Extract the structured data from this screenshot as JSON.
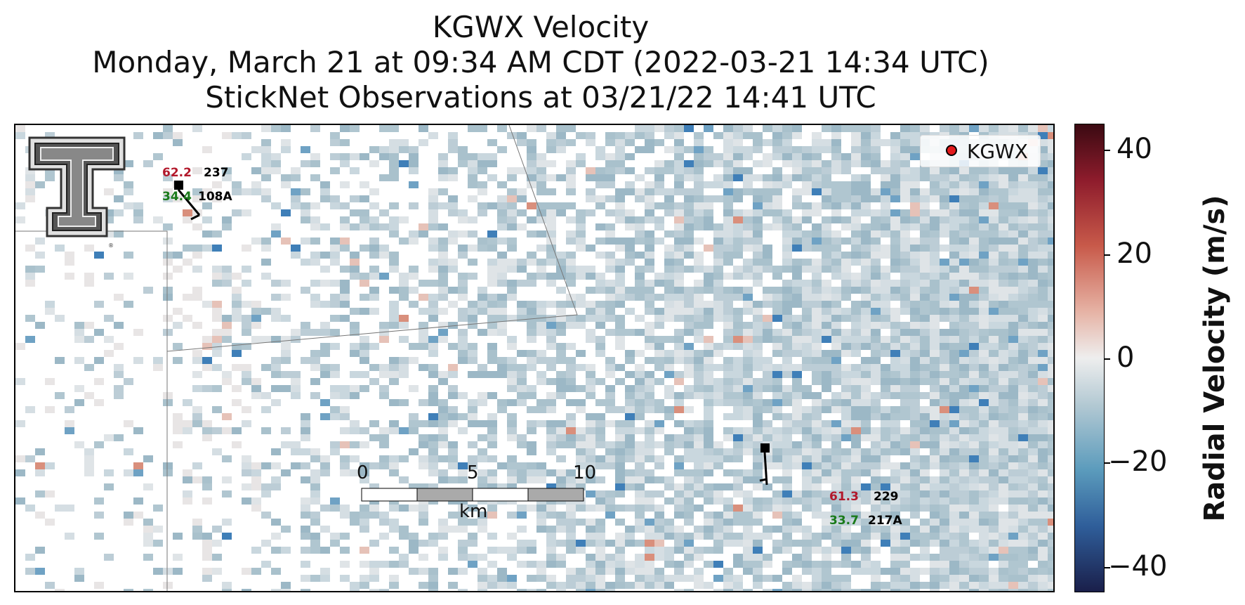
{
  "title": {
    "line1": "KGWX Velocity",
    "line2": "Monday, March 21 at 09:34 AM CDT (2022-03-21 14:34 UTC)",
    "line3": "StickNet Observations at 03/21/22 14:41 UTC"
  },
  "legend": {
    "label": "KGWX",
    "marker_color": "#e31a1c"
  },
  "logo": {
    "name": "texas-tech-double-t-logo"
  },
  "stations": [
    {
      "id": "108A",
      "temperature": "62.2",
      "dewpoint": "34.4",
      "direction": "237"
    },
    {
      "id": "217A",
      "temperature": "61.3",
      "dewpoint": "33.7",
      "direction": "229"
    }
  ],
  "scale_bar": {
    "ticks": [
      "0",
      "5",
      "10"
    ],
    "unit": "km"
  },
  "colorbar": {
    "title": "Radial Velocity (m/s)",
    "ticks": [
      "40",
      "20",
      "0",
      "−20",
      "−40"
    ],
    "range": [
      -45,
      45
    ],
    "colormap": [
      "#1a1f4a",
      "#2f5e9a",
      "#5b9bbc",
      "#b3c9d3",
      "#eeeeee",
      "#e6b2a4",
      "#c85a4a",
      "#8e1c2c",
      "#3b0a12"
    ]
  }
}
